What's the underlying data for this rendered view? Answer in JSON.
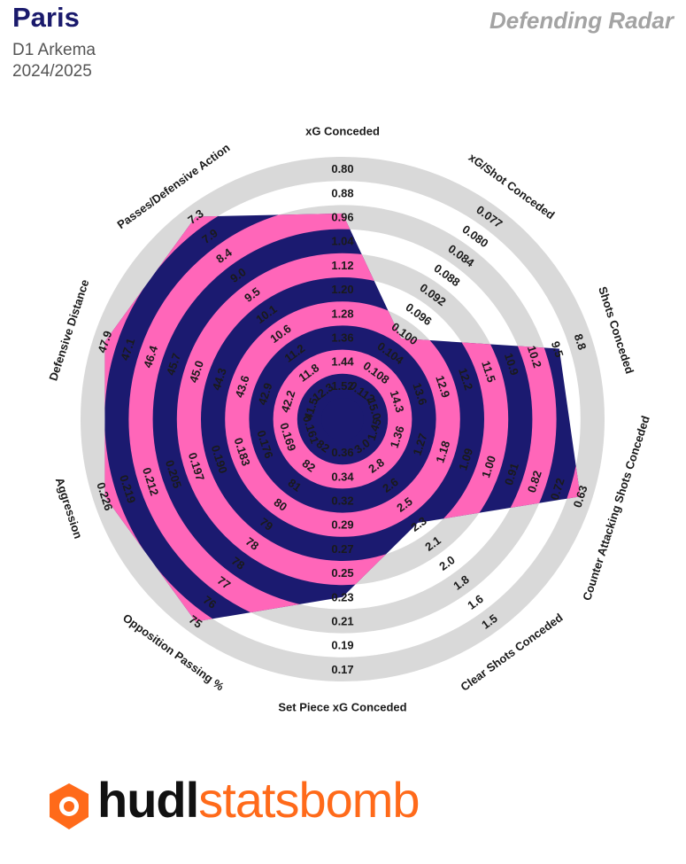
{
  "header": {
    "team": "Paris",
    "competition": "D1 Arkema",
    "season": "2024/2025",
    "radar_title": "Defending Radar"
  },
  "logo": {
    "brand_dark": "hudl",
    "brand_accent": "statsbomb",
    "icon": "statsbomb-badge-icon"
  },
  "colors": {
    "navy": "#1b1a70",
    "pink": "#ff66b9",
    "grey_ring": "#d9d9d9",
    "accent": "#ff6a1a"
  },
  "chart_data": {
    "type": "radar",
    "title": "Defending Radar",
    "axes": [
      {
        "label": "xG Conceded",
        "ticks": [
          "0.80",
          "0.88",
          "0.96",
          "1.04",
          "1.12",
          "1.20",
          "1.28",
          "1.36",
          "1.44",
          "1.52"
        ],
        "value": 0.94
      },
      {
        "label": "xG/Shot Conceded",
        "ticks": [
          "0.077",
          "0.080",
          "0.084",
          "0.088",
          "0.092",
          "0.096",
          "0.100",
          "0.104",
          "0.108",
          "0.112"
        ],
        "value": 0.1
      },
      {
        "label": "Shots Conceded",
        "ticks": [
          "8.8",
          "9.5",
          "10.2",
          "10.9",
          "11.5",
          "12.2",
          "12.9",
          "13.6",
          "14.3",
          "15.0"
        ],
        "value": 9.4
      },
      {
        "label": "Counter Attacking Shots Conceded",
        "ticks": [
          "0.63",
          "0.72",
          "0.82",
          "0.91",
          "1.00",
          "1.09",
          "1.18",
          "1.27",
          "1.36",
          "1.45"
        ],
        "value": 0.63
      },
      {
        "label": "Clear Shots Conceded",
        "ticks": [
          "1.5",
          "1.6",
          "1.8",
          "2.0",
          "2.1",
          "2.3",
          "2.5",
          "2.6",
          "2.8",
          "3.0"
        ],
        "value": 2.3
      },
      {
        "label": "Set Piece xG Conceded",
        "ticks": [
          "0.17",
          "0.19",
          "0.21",
          "0.23",
          "0.25",
          "0.27",
          "0.29",
          "0.32",
          "0.34",
          "0.36"
        ],
        "value": 0.23
      },
      {
        "label": "Opposition Passing %",
        "ticks": [
          "75",
          "76",
          "77",
          "78",
          "78",
          "79",
          "80",
          "81",
          "82",
          "82"
        ],
        "value": 75
      },
      {
        "label": "Aggression",
        "ticks": [
          "0.226",
          "0.219",
          "0.212",
          "0.205",
          "0.197",
          "0.190",
          "0.183",
          "0.176",
          "0.169",
          "0.161"
        ],
        "value": 0.226
      },
      {
        "label": "Defensive Distance",
        "ticks": [
          "47.9",
          "47.1",
          "46.4",
          "45.7",
          "45.0",
          "44.3",
          "43.6",
          "42.9",
          "42.2",
          "41.5"
        ],
        "value": 47.9
      },
      {
        "label": "Passes/Defensive Action",
        "ticks": [
          "7.3",
          "7.9",
          "8.4",
          "9.0",
          "9.5",
          "10.1",
          "10.6",
          "11.2",
          "11.8",
          "12.3"
        ],
        "value": 7.3
      }
    ]
  }
}
